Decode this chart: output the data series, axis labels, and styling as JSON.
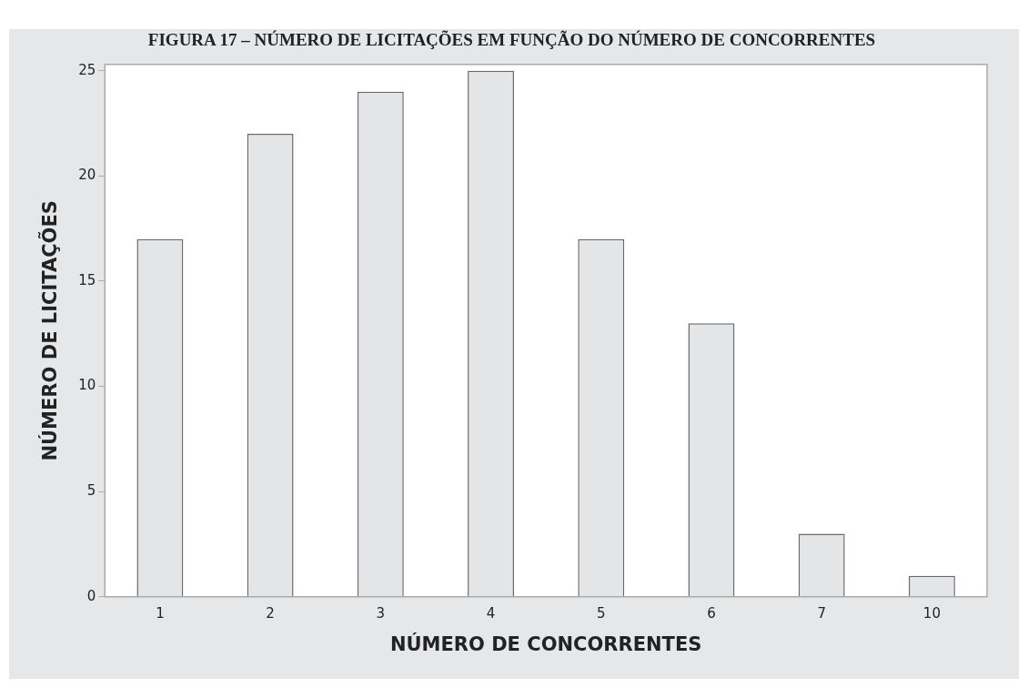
{
  "chart_data": {
    "type": "bar",
    "title": "FIGURA 17 – NÚMERO DE LICITAÇÕES EM FUNÇÃO DO NÚMERO DE CONCORRENTES",
    "xlabel": "NÚMERO DE CONCORRENTES",
    "ylabel": "NÚMERO DE LICITAÇÕES",
    "categories": [
      "1",
      "2",
      "3",
      "4",
      "5",
      "6",
      "7",
      "10"
    ],
    "values": [
      17,
      22,
      24,
      25,
      17,
      13,
      3,
      1
    ],
    "color": "#e4e5e7",
    "ylim": [
      0,
      25.3
    ],
    "yticks": [
      0,
      5,
      10,
      15,
      20,
      25
    ],
    "grid": false,
    "legend": false
  }
}
